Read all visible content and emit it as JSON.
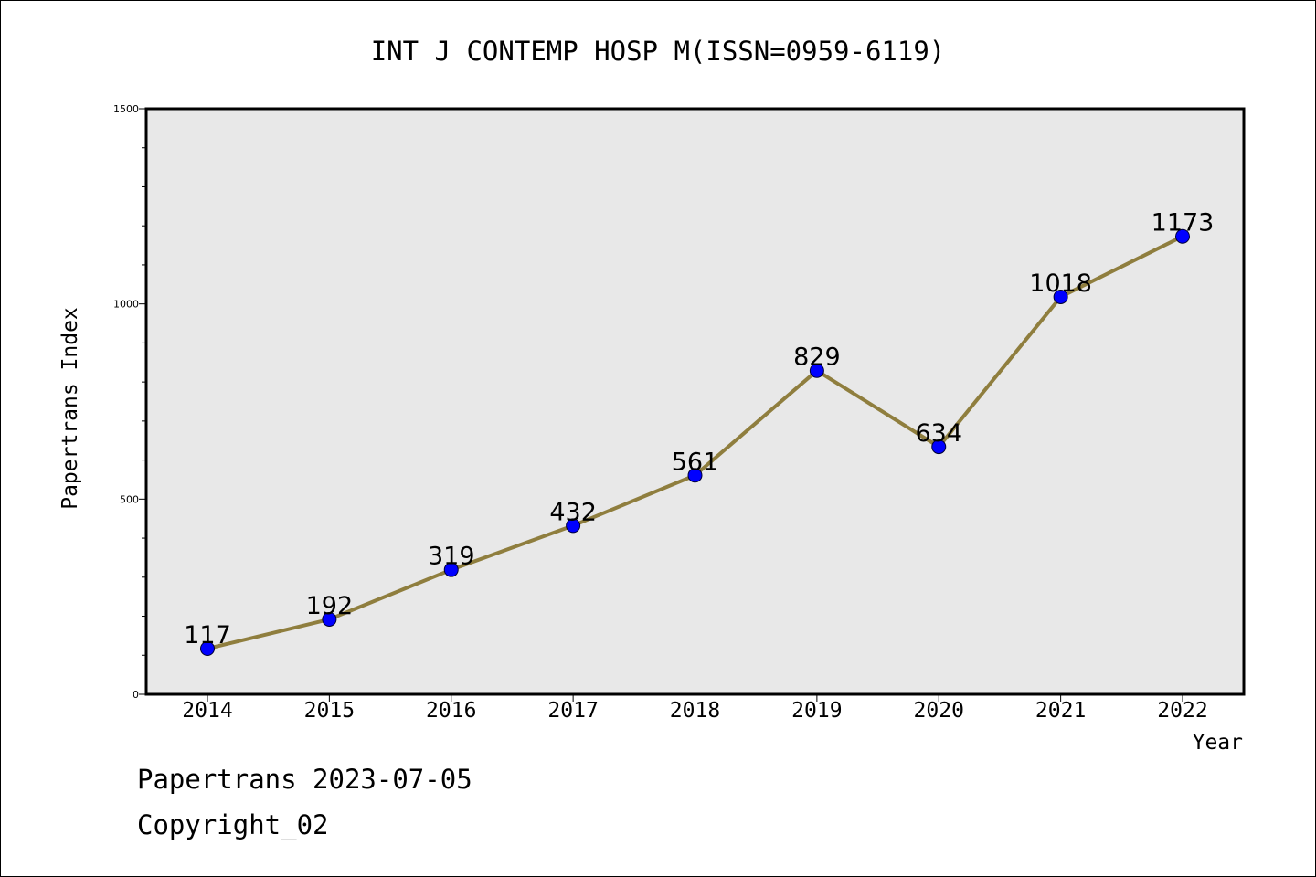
{
  "chart_data": {
    "type": "line",
    "title": "INT J CONTEMP HOSP M(ISSN=0959-6119)",
    "xlabel": "Year",
    "ylabel": "Papertrans Index",
    "ylim": [
      0,
      1500
    ],
    "yticks": [
      0,
      500,
      1000,
      1500
    ],
    "grid": false,
    "categories": [
      "2014",
      "2015",
      "2016",
      "2017",
      "2018",
      "2019",
      "2020",
      "2021",
      "2022"
    ],
    "series": [
      {
        "values": [
          117,
          192,
          319,
          432,
          561,
          829,
          634,
          1018,
          1173
        ]
      }
    ],
    "colors": {
      "line": "#8f7e3e",
      "marker": "#0000ff",
      "plot_background": "#e8e8e8"
    }
  },
  "footer": {
    "line1": "Papertrans 2023-07-05",
    "line2": "Copyright_02"
  }
}
